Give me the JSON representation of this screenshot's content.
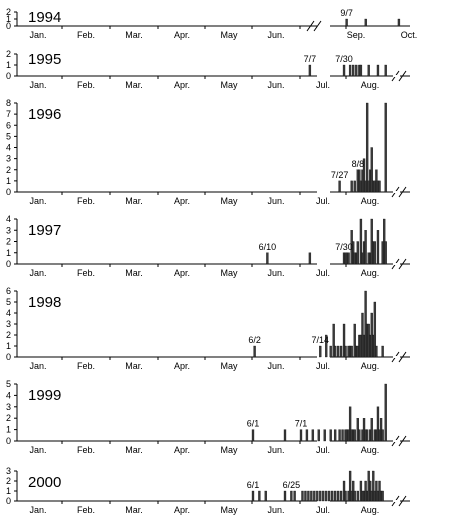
{
  "chart_data": [
    {
      "type": "bar",
      "year": "1994",
      "ylim": [
        0,
        2
      ],
      "yticks": [
        "0",
        "1",
        "2"
      ],
      "x_labels": [
        "Jan.",
        "Feb.",
        "Mar.",
        "Apr.",
        "May",
        "Jun.",
        "Sep.",
        "Oct."
      ],
      "axis_break": true,
      "annotations": [
        "9/7"
      ],
      "bars": [
        {
          "date": "09-07",
          "value": 1
        },
        {
          "date": "09-19",
          "value": 1
        },
        {
          "date": "10-10",
          "value": 1
        }
      ]
    },
    {
      "type": "bar",
      "year": "1995",
      "ylim": [
        0,
        2
      ],
      "yticks": [
        "0",
        "1",
        "2"
      ],
      "x_labels": [
        "Jan.",
        "Feb.",
        "Mar.",
        "Apr.",
        "May",
        "Jun.",
        "Jul.",
        "Aug."
      ],
      "axis_break": true,
      "annotations": [
        "7/7",
        "7/30"
      ],
      "bars": [
        {
          "date": "07-07",
          "value": 1
        },
        {
          "date": "07-30",
          "value": 1
        },
        {
          "date": "08-03",
          "value": 1
        },
        {
          "date": "08-05",
          "value": 1
        },
        {
          "date": "08-07",
          "value": 1
        },
        {
          "date": "08-09",
          "value": 1
        },
        {
          "date": "08-10",
          "value": 1
        },
        {
          "date": "08-15",
          "value": 1
        },
        {
          "date": "08-21",
          "value": 1
        },
        {
          "date": "08-26",
          "value": 1
        }
      ]
    },
    {
      "type": "bar",
      "year": "1996",
      "ylim": [
        0,
        8
      ],
      "yticks": [
        "0",
        "1",
        "2",
        "3",
        "4",
        "5",
        "6",
        "7",
        "8"
      ],
      "x_labels": [
        "Jan.",
        "Feb.",
        "Mar.",
        "Apr.",
        "May",
        "Jun.",
        "Jul.",
        "Aug."
      ],
      "axis_break": true,
      "annotations": [
        "7/27",
        "8/8"
      ],
      "bars": [
        {
          "date": "07-27",
          "value": 1
        },
        {
          "date": "08-04",
          "value": 1
        },
        {
          "date": "08-06",
          "value": 1
        },
        {
          "date": "08-08",
          "value": 2
        },
        {
          "date": "08-09",
          "value": 2
        },
        {
          "date": "08-10",
          "value": 1
        },
        {
          "date": "08-11",
          "value": 2
        },
        {
          "date": "08-12",
          "value": 3
        },
        {
          "date": "08-13",
          "value": 1
        },
        {
          "date": "08-14",
          "value": 8
        },
        {
          "date": "08-15",
          "value": 1
        },
        {
          "date": "08-16",
          "value": 2
        },
        {
          "date": "08-17",
          "value": 4
        },
        {
          "date": "08-18",
          "value": 1
        },
        {
          "date": "08-19",
          "value": 1
        },
        {
          "date": "08-20",
          "value": 2
        },
        {
          "date": "08-21",
          "value": 1
        },
        {
          "date": "08-22",
          "value": 1
        },
        {
          "date": "08-26",
          "value": 8
        }
      ]
    },
    {
      "type": "bar",
      "year": "1997",
      "ylim": [
        0,
        4
      ],
      "yticks": [
        "0",
        "1",
        "2",
        "3",
        "4"
      ],
      "x_labels": [
        "Jan.",
        "Feb.",
        "Mar.",
        "Apr.",
        "May",
        "Jun.",
        "Jul.",
        "Aug."
      ],
      "axis_break": true,
      "annotations": [
        "6/10",
        "7/30"
      ],
      "bars": [
        {
          "date": "06-10",
          "value": 1
        },
        {
          "date": "07-07",
          "value": 1
        },
        {
          "date": "07-30",
          "value": 1
        },
        {
          "date": "07-31",
          "value": 1
        },
        {
          "date": "08-01",
          "value": 1
        },
        {
          "date": "08-02",
          "value": 1
        },
        {
          "date": "08-04",
          "value": 3
        },
        {
          "date": "08-05",
          "value": 2
        },
        {
          "date": "08-06",
          "value": 1
        },
        {
          "date": "08-07",
          "value": 1
        },
        {
          "date": "08-08",
          "value": 2
        },
        {
          "date": "08-10",
          "value": 4
        },
        {
          "date": "08-11",
          "value": 1
        },
        {
          "date": "08-12",
          "value": 2
        },
        {
          "date": "08-13",
          "value": 3
        },
        {
          "date": "08-15",
          "value": 1
        },
        {
          "date": "08-16",
          "value": 1
        },
        {
          "date": "08-17",
          "value": 4
        },
        {
          "date": "08-18",
          "value": 2
        },
        {
          "date": "08-19",
          "value": 2
        },
        {
          "date": "08-21",
          "value": 3
        },
        {
          "date": "08-24",
          "value": 2
        },
        {
          "date": "08-25",
          "value": 4
        },
        {
          "date": "08-26",
          "value": 2
        }
      ]
    },
    {
      "type": "bar",
      "year": "1998",
      "ylim": [
        0,
        6
      ],
      "yticks": [
        "0",
        "1",
        "2",
        "3",
        "4",
        "5",
        "6"
      ],
      "x_labels": [
        "Jan.",
        "Feb.",
        "Mar.",
        "Apr.",
        "May",
        "Jun.",
        "Jul.",
        "Aug."
      ],
      "axis_break": true,
      "annotations": [
        "6/2",
        "7/14"
      ],
      "bars": [
        {
          "date": "06-02",
          "value": 1
        },
        {
          "date": "07-14",
          "value": 1
        },
        {
          "date": "07-18",
          "value": 2
        },
        {
          "date": "07-21",
          "value": 1
        },
        {
          "date": "07-23",
          "value": 3
        },
        {
          "date": "07-24",
          "value": 1
        },
        {
          "date": "07-26",
          "value": 1
        },
        {
          "date": "07-28",
          "value": 1
        },
        {
          "date": "07-30",
          "value": 3
        },
        {
          "date": "07-31",
          "value": 1
        },
        {
          "date": "08-02",
          "value": 1
        },
        {
          "date": "08-03",
          "value": 1
        },
        {
          "date": "08-04",
          "value": 1
        },
        {
          "date": "08-06",
          "value": 3
        },
        {
          "date": "08-07",
          "value": 1
        },
        {
          "date": "08-08",
          "value": 1
        },
        {
          "date": "08-09",
          "value": 2
        },
        {
          "date": "08-10",
          "value": 2
        },
        {
          "date": "08-11",
          "value": 4
        },
        {
          "date": "08-12",
          "value": 2
        },
        {
          "date": "08-13",
          "value": 6
        },
        {
          "date": "08-14",
          "value": 3
        },
        {
          "date": "08-15",
          "value": 3
        },
        {
          "date": "08-16",
          "value": 2
        },
        {
          "date": "08-17",
          "value": 4
        },
        {
          "date": "08-18",
          "value": 2
        },
        {
          "date": "08-19",
          "value": 5
        },
        {
          "date": "08-20",
          "value": 1
        },
        {
          "date": "08-24",
          "value": 1
        }
      ]
    },
    {
      "type": "bar",
      "year": "1999",
      "ylim": [
        0,
        5
      ],
      "yticks": [
        "0",
        "1",
        "2",
        "3",
        "4",
        "5"
      ],
      "x_labels": [
        "Jan.",
        "Feb.",
        "Mar.",
        "Apr.",
        "May",
        "Jun.",
        "Jul.",
        "Aug."
      ],
      "axis_break": true,
      "annotations": [
        "6/1",
        "7/1"
      ],
      "bars": [
        {
          "date": "06-01",
          "value": 1
        },
        {
          "date": "06-21",
          "value": 1
        },
        {
          "date": "07-01",
          "value": 1
        },
        {
          "date": "07-05",
          "value": 1
        },
        {
          "date": "07-09",
          "value": 1
        },
        {
          "date": "07-13",
          "value": 1
        },
        {
          "date": "07-17",
          "value": 1
        },
        {
          "date": "07-21",
          "value": 1
        },
        {
          "date": "07-24",
          "value": 1
        },
        {
          "date": "07-27",
          "value": 1
        },
        {
          "date": "07-29",
          "value": 1
        },
        {
          "date": "07-31",
          "value": 1
        },
        {
          "date": "08-01",
          "value": 1
        },
        {
          "date": "08-02",
          "value": 1
        },
        {
          "date": "08-03",
          "value": 3
        },
        {
          "date": "08-04",
          "value": 1
        },
        {
          "date": "08-05",
          "value": 1
        },
        {
          "date": "08-06",
          "value": 1
        },
        {
          "date": "08-08",
          "value": 2
        },
        {
          "date": "08-09",
          "value": 1
        },
        {
          "date": "08-11",
          "value": 1
        },
        {
          "date": "08-12",
          "value": 2
        },
        {
          "date": "08-13",
          "value": 1
        },
        {
          "date": "08-14",
          "value": 1
        },
        {
          "date": "08-16",
          "value": 1
        },
        {
          "date": "08-17",
          "value": 2
        },
        {
          "date": "08-19",
          "value": 1
        },
        {
          "date": "08-20",
          "value": 1
        },
        {
          "date": "08-21",
          "value": 3
        },
        {
          "date": "08-22",
          "value": 1
        },
        {
          "date": "08-23",
          "value": 2
        },
        {
          "date": "08-24",
          "value": 1
        },
        {
          "date": "08-26",
          "value": 5
        }
      ]
    },
    {
      "type": "bar",
      "year": "2000",
      "ylim": [
        0,
        3
      ],
      "yticks": [
        "0",
        "1",
        "2",
        "3"
      ],
      "x_labels": [
        "Jan.",
        "Feb.",
        "Mar.",
        "Apr.",
        "May",
        "Jun.",
        "Jul.",
        "Aug."
      ],
      "axis_break": true,
      "annotations": [
        "6/1",
        "6/25"
      ],
      "bars": [
        {
          "date": "06-01",
          "value": 1
        },
        {
          "date": "06-05",
          "value": 1
        },
        {
          "date": "06-09",
          "value": 1
        },
        {
          "date": "06-21",
          "value": 1
        },
        {
          "date": "06-25",
          "value": 1
        },
        {
          "date": "06-27",
          "value": 1
        },
        {
          "date": "07-02",
          "value": 1
        },
        {
          "date": "07-04",
          "value": 1
        },
        {
          "date": "07-06",
          "value": 1
        },
        {
          "date": "07-08",
          "value": 1
        },
        {
          "date": "07-10",
          "value": 1
        },
        {
          "date": "07-12",
          "value": 1
        },
        {
          "date": "07-14",
          "value": 1
        },
        {
          "date": "07-16",
          "value": 1
        },
        {
          "date": "07-18",
          "value": 1
        },
        {
          "date": "07-20",
          "value": 1
        },
        {
          "date": "07-22",
          "value": 1
        },
        {
          "date": "07-24",
          "value": 1
        },
        {
          "date": "07-26",
          "value": 1
        },
        {
          "date": "07-28",
          "value": 1
        },
        {
          "date": "07-30",
          "value": 2
        },
        {
          "date": "07-31",
          "value": 1
        },
        {
          "date": "08-02",
          "value": 1
        },
        {
          "date": "08-03",
          "value": 3
        },
        {
          "date": "08-04",
          "value": 1
        },
        {
          "date": "08-05",
          "value": 2
        },
        {
          "date": "08-06",
          "value": 1
        },
        {
          "date": "08-08",
          "value": 1
        },
        {
          "date": "08-10",
          "value": 2
        },
        {
          "date": "08-11",
          "value": 1
        },
        {
          "date": "08-12",
          "value": 1
        },
        {
          "date": "08-13",
          "value": 2
        },
        {
          "date": "08-14",
          "value": 1
        },
        {
          "date": "08-15",
          "value": 3
        },
        {
          "date": "08-16",
          "value": 2
        },
        {
          "date": "08-17",
          "value": 1
        },
        {
          "date": "08-18",
          "value": 3
        },
        {
          "date": "08-19",
          "value": 1
        },
        {
          "date": "08-20",
          "value": 2
        },
        {
          "date": "08-21",
          "value": 1
        },
        {
          "date": "08-22",
          "value": 2
        },
        {
          "date": "08-23",
          "value": 1
        },
        {
          "date": "08-24",
          "value": 1
        }
      ]
    }
  ]
}
